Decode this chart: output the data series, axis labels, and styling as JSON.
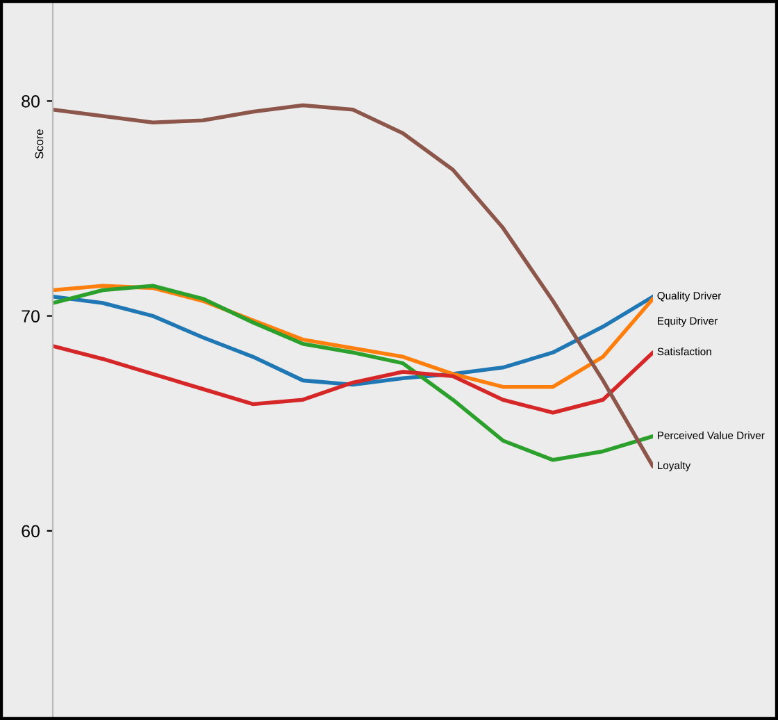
{
  "chart_data": {
    "type": "line",
    "ylabel": "Score",
    "categories": [
      null,
      null,
      null,
      null,
      null,
      null,
      null,
      null,
      null,
      null,
      null,
      null,
      null
    ],
    "series": [
      {
        "name": "Quality Driver",
        "color": "#1f77b4",
        "values": [
          70.9,
          70.6,
          70.0,
          69.0,
          68.1,
          67.0,
          66.8,
          67.1,
          67.3,
          67.6,
          68.3,
          69.5,
          70.9
        ]
      },
      {
        "name": "Equity Driver",
        "color": "#ff7f0e",
        "values": [
          71.2,
          71.4,
          71.3,
          70.7,
          69.8,
          68.9,
          68.5,
          68.1,
          67.3,
          66.7,
          66.7,
          68.1,
          70.8
        ]
      },
      {
        "name": "Perceived Value Driver",
        "color": "#2ca02c",
        "values": [
          70.6,
          71.2,
          71.4,
          70.8,
          69.7,
          68.7,
          68.3,
          67.8,
          66.1,
          64.2,
          63.3,
          63.7,
          64.4
        ]
      },
      {
        "name": "Satisfaction",
        "color": "#d62728",
        "values": [
          68.6,
          68.0,
          67.3,
          66.6,
          65.9,
          66.1,
          66.9,
          67.4,
          67.2,
          66.1,
          65.5,
          66.1,
          68.3
        ]
      },
      {
        "name": "Loyalty",
        "color": "#8c564b",
        "values": [
          79.6,
          79.3,
          79.0,
          79.1,
          79.5,
          79.8,
          79.6,
          78.5,
          76.8,
          74.1,
          70.7,
          67.0,
          63.0
        ]
      }
    ],
    "ylim": [
      51.2,
      84.7
    ],
    "yticks": [
      60,
      70,
      80
    ],
    "grid": false,
    "legend": false,
    "marker": "none",
    "line_style": "solid"
  }
}
